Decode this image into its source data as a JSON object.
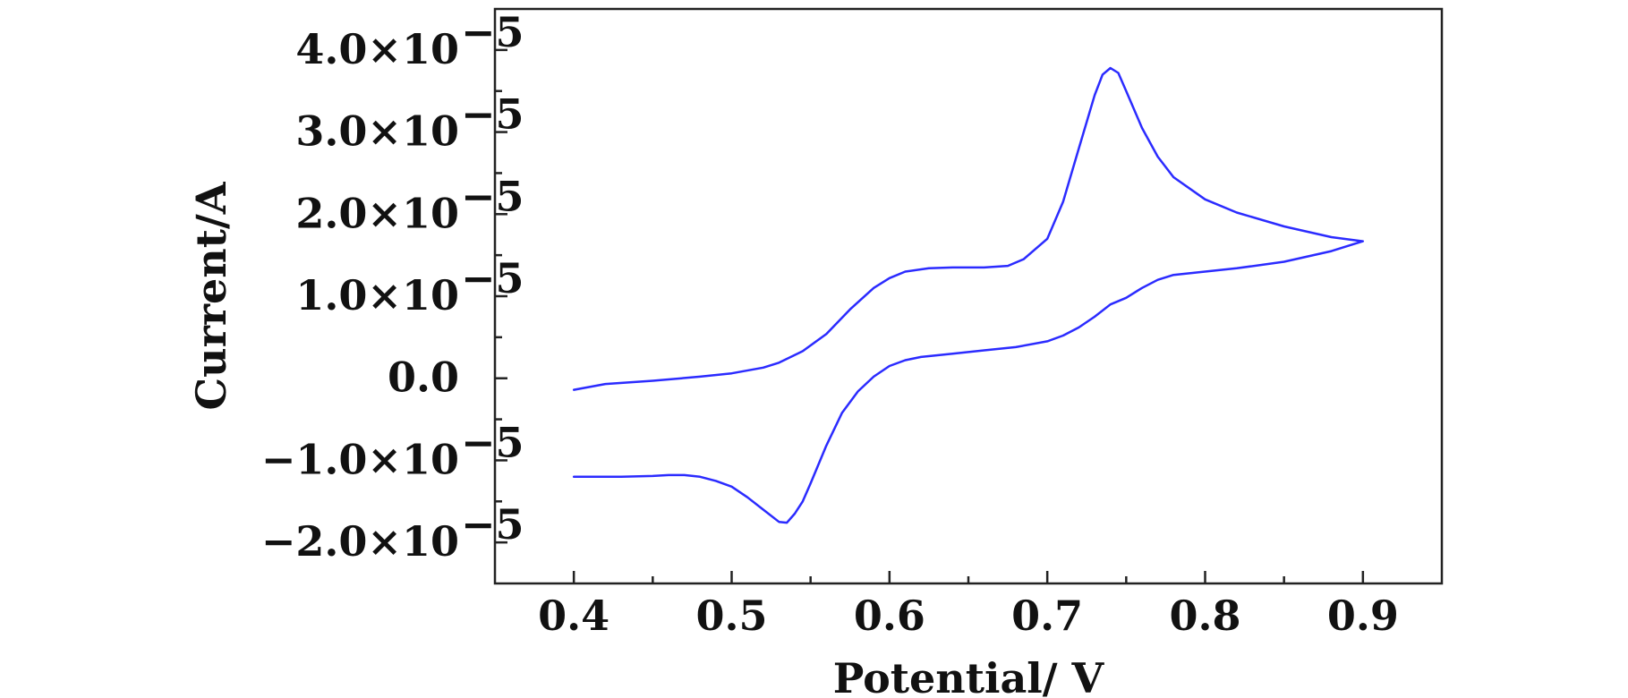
{
  "chart_data": {
    "type": "line",
    "xlabel": "Potential/ V",
    "ylabel": "Current/A",
    "xlim": [
      0.35,
      0.95
    ],
    "ylim": [
      -2.5e-05,
      4.5e-05
    ],
    "x_ticks": [
      0.4,
      0.5,
      0.6,
      0.7,
      0.8,
      0.9
    ],
    "x_tick_labels": [
      "0.4",
      "0.5",
      "0.6",
      "0.7",
      "0.8",
      "0.9"
    ],
    "y_ticks": [
      -2e-05,
      -1e-05,
      0,
      1e-05,
      2e-05,
      3e-05,
      4e-05
    ],
    "y_tick_labels": [
      {
        "mantissa": "−2.0×10",
        "exp": "−5"
      },
      {
        "mantissa": "−1.0×10",
        "exp": "−5"
      },
      {
        "mantissa": "0.0",
        "exp": ""
      },
      {
        "mantissa": "1.0×10",
        "exp": "−5"
      },
      {
        "mantissa": "2.0×10",
        "exp": "−5"
      },
      {
        "mantissa": "3.0×10",
        "exp": "−5"
      },
      {
        "mantissa": "4.0×10",
        "exp": "−5"
      }
    ],
    "grid": false,
    "series": [
      {
        "color": "#2b2bff",
        "x": [
          0.4,
          0.42,
          0.45,
          0.48,
          0.5,
          0.52,
          0.53,
          0.545,
          0.56,
          0.575,
          0.59,
          0.6,
          0.61,
          0.625,
          0.64,
          0.66,
          0.675,
          0.685,
          0.7,
          0.71,
          0.72,
          0.73,
          0.735,
          0.74,
          0.745,
          0.75,
          0.76,
          0.77,
          0.78,
          0.8,
          0.82,
          0.85,
          0.88,
          0.9,
          0.88,
          0.85,
          0.82,
          0.8,
          0.78,
          0.77,
          0.76,
          0.75,
          0.74,
          0.73,
          0.72,
          0.71,
          0.7,
          0.68,
          0.66,
          0.64,
          0.62,
          0.61,
          0.6,
          0.59,
          0.58,
          0.57,
          0.56,
          0.55,
          0.545,
          0.54,
          0.535,
          0.53,
          0.52,
          0.51,
          0.5,
          0.49,
          0.48,
          0.47,
          0.46,
          0.45,
          0.43,
          0.41,
          0.4
        ],
        "y": [
          -1.4e-06,
          -7e-07,
          -3e-07,
          2e-07,
          6e-07,
          1.3e-06,
          1.9e-06,
          3.3e-06,
          5.4e-06,
          8.4e-06,
          1.1e-05,
          1.22e-05,
          1.3e-05,
          1.34e-05,
          1.35e-05,
          1.35e-05,
          1.37e-05,
          1.45e-05,
          1.7e-05,
          2.15e-05,
          2.8e-05,
          3.45e-05,
          3.7e-05,
          3.78e-05,
          3.72e-05,
          3.5e-05,
          3.05e-05,
          2.7e-05,
          2.45e-05,
          2.18e-05,
          2.02e-05,
          1.85e-05,
          1.72e-05,
          1.67e-05,
          1.55e-05,
          1.42e-05,
          1.34e-05,
          1.3e-05,
          1.26e-05,
          1.2e-05,
          1.1e-05,
          9.8e-06,
          9e-06,
          7.5e-06,
          6.2e-06,
          5.2e-06,
          4.5e-06,
          3.8e-06,
          3.4e-06,
          3e-06,
          2.6e-06,
          2.2e-06,
          1.5e-06,
          2e-07,
          -1.6e-06,
          -4.2e-06,
          -8.2e-06,
          -1.28e-05,
          -1.5e-05,
          -1.65e-05,
          -1.76e-05,
          -1.75e-05,
          -1.6e-05,
          -1.45e-05,
          -1.32e-05,
          -1.25e-05,
          -1.2e-05,
          -1.18e-05,
          -1.18e-05,
          -1.19e-05,
          -1.2e-05,
          -1.2e-05,
          -1.2e-05
        ]
      }
    ]
  }
}
